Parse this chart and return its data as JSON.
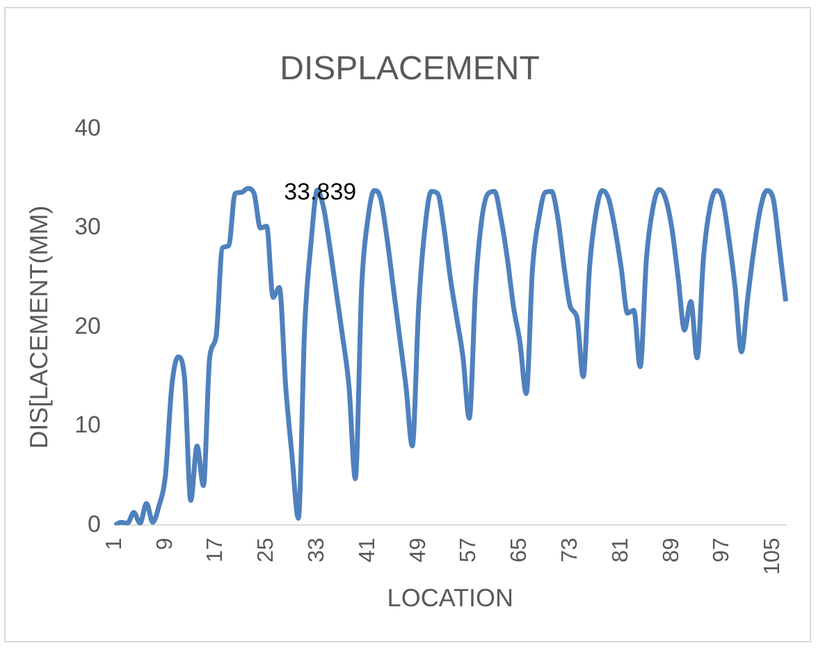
{
  "chart_data": {
    "type": "line",
    "title": "DISPLACEMENT",
    "xlabel": "LOCATION",
    "ylabel": "DIS[LACEMENT(MM)",
    "categories": [
      "1",
      null,
      null,
      null,
      null,
      null,
      null,
      null,
      "9",
      null,
      null,
      null,
      null,
      null,
      null,
      null,
      "17",
      null,
      null,
      null,
      null,
      null,
      null,
      null,
      "25",
      null,
      null,
      null,
      null,
      null,
      null,
      null,
      "33",
      null,
      null,
      null,
      null,
      null,
      null,
      null,
      "41",
      null,
      null,
      null,
      null,
      null,
      null,
      null,
      "49",
      null,
      null,
      null,
      null,
      null,
      null,
      null,
      "57",
      null,
      null,
      null,
      null,
      null,
      null,
      null,
      "65",
      null,
      null,
      null,
      null,
      null,
      null,
      null,
      "73",
      null,
      null,
      null,
      null,
      null,
      null,
      null,
      "81",
      null,
      null,
      null,
      null,
      null,
      null,
      null,
      "89",
      null,
      null,
      null,
      null,
      null,
      null,
      null,
      "97",
      null,
      null,
      null,
      null,
      null,
      null,
      null,
      "105",
      null,
      null
    ],
    "series": [
      {
        "color": "#4f81bd",
        "values": [
          0,
          0.3,
          0.2,
          1.3,
          0.2,
          2.2,
          0.3,
          2,
          5,
          14,
          17,
          15,
          2.5,
          8,
          4,
          17,
          19,
          28,
          28.2,
          33.5,
          33.6,
          34,
          33.5,
          30,
          30.2,
          23,
          24,
          14,
          7,
          0.7,
          20,
          28.5,
          33.839,
          32,
          28,
          23.5,
          19,
          14,
          4.7,
          24,
          31,
          33.8,
          33,
          29,
          24,
          19,
          14,
          8,
          22,
          30,
          33.7,
          33.5,
          30,
          25,
          21,
          17,
          10.8,
          24,
          31,
          33.5,
          33.7,
          31,
          27,
          22,
          18.5,
          13.3,
          26,
          31,
          33.6,
          33.7,
          31,
          26,
          22,
          21,
          15,
          26,
          31.5,
          33.8,
          33,
          30,
          26,
          21.4,
          21.7,
          16,
          27,
          32,
          33.9,
          33,
          30,
          25,
          19.7,
          22.6,
          16.9,
          27,
          32,
          33.8,
          33,
          29,
          24,
          17.5,
          23,
          28,
          32,
          33.8,
          33,
          28,
          22.6
        ]
      }
    ],
    "ylim": [
      0,
      40
    ],
    "yticks": [
      0,
      10,
      20,
      30,
      40
    ],
    "grid": false,
    "legend": false,
    "annotations": [
      {
        "text": "33.839",
        "x": "33",
        "y": 33.839
      }
    ]
  }
}
